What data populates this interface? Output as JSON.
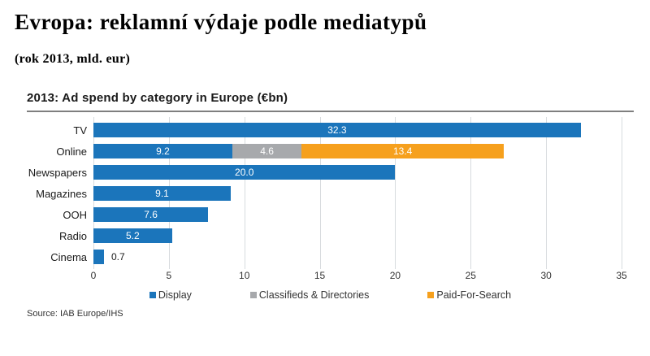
{
  "header": {
    "title": "Evropa: reklamní výdaje podle mediatypů",
    "subtitle": "(rok 2013, mld. eur)"
  },
  "chart": {
    "title": "2013: Ad spend by category in Europe (€bn)",
    "source": "Source: IAB Europe/IHS"
  },
  "colors": {
    "display_blue": "#1b75bb",
    "classifieds_gray": "#a7a9ac",
    "search_orange": "#f6a01d",
    "gridline": "#d7dbde"
  },
  "chart_data": {
    "type": "bar",
    "orientation": "horizontal",
    "title": "2013: Ad spend by category in Europe (€bn)",
    "categories": [
      "TV",
      "Online",
      "Newspapers",
      "Magazines",
      "OOH",
      "Radio",
      "Cinema"
    ],
    "series": [
      {
        "name": "Display",
        "color": "#1b75bb",
        "values": [
          32.3,
          9.2,
          20.0,
          9.1,
          7.6,
          5.2,
          0.7
        ]
      },
      {
        "name": "Classifieds & Directories",
        "color": "#a7a9ac",
        "values": [
          0,
          4.6,
          0,
          0,
          0,
          0,
          0
        ]
      },
      {
        "name": "Paid-For-Search",
        "color": "#f6a01d",
        "values": [
          0,
          13.4,
          0,
          0,
          0,
          0,
          0
        ]
      }
    ],
    "xlim": [
      0,
      35
    ],
    "xticks": [
      0,
      5,
      10,
      15,
      20,
      25,
      30,
      35
    ],
    "grid": "vertical",
    "legend_position": "bottom",
    "value_labels": "one_decimal_inside_bar"
  }
}
